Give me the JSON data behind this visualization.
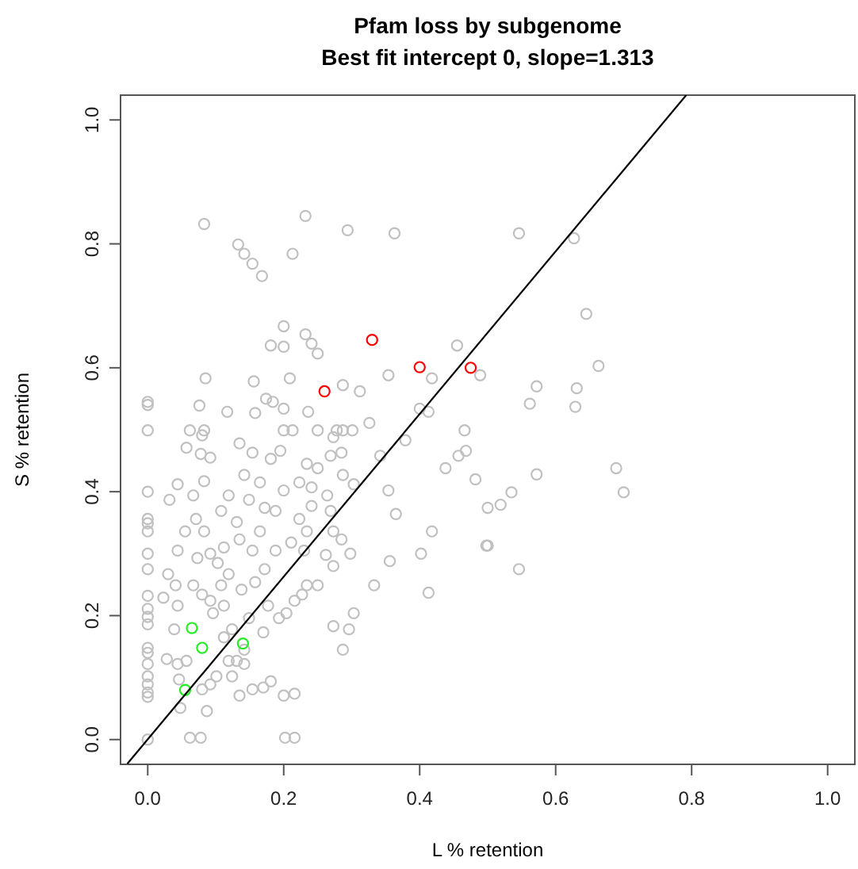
{
  "chart_data": {
    "type": "scatter",
    "title": "Pfam loss by subgenome",
    "subtitle": "Best fit intercept 0, slope=1.313",
    "xlabel": "L % retention",
    "ylabel": "S % retention",
    "xlim": [
      -0.04,
      1.04
    ],
    "ylim": [
      -0.04,
      1.04
    ],
    "xticks": [
      {
        "value": 0,
        "label": "0.0"
      },
      0.2,
      0.4,
      0.6,
      0.8,
      {
        "value": 1,
        "label": "1.0"
      }
    ],
    "yticks": [
      {
        "value": 0,
        "label": "0.0"
      },
      0.2,
      0.4,
      0.6,
      0.8,
      {
        "value": 1,
        "label": "1.0"
      }
    ],
    "grid": false,
    "marker": "circle",
    "series": [
      {
        "color": "#c0c0c0",
        "x": [
          0.083,
          0.232,
          0.294,
          0.363,
          0.133,
          0.142,
          0.154,
          0.168,
          0.213,
          0.2,
          0.232,
          0.181,
          0.2,
          0.241,
          0.25,
          0.455,
          0.489,
          0.354,
          0.418,
          0.287,
          0.312,
          0.085,
          0.156,
          0.209,
          0.0,
          0.0,
          0.076,
          0.117,
          0.158,
          0.174,
          0.184,
          0.2,
          0.236,
          0.4,
          0.413,
          0.326,
          0.466,
          0.0,
          0.062,
          0.083,
          0.2,
          0.213,
          0.25,
          0.278,
          0.287,
          0.301,
          0.546,
          0.627,
          0.645,
          0.663,
          0.572,
          0.631,
          0.562,
          0.629,
          0.482,
          0.572,
          0.535,
          0.5,
          0.519,
          0.689,
          0.7,
          0.5,
          0.546,
          0.0,
          0.0,
          0.0,
          0.0,
          0.0,
          0.0,
          0.0,
          0.0,
          0.0,
          0.0,
          0.0,
          0.0,
          0.0,
          0.0,
          0.0,
          0.0,
          0.0,
          0.0,
          0.057,
          0.078,
          0.092,
          0.083,
          0.032,
          0.044,
          0.067,
          0.071,
          0.055,
          0.083,
          0.044,
          0.073,
          0.03,
          0.041,
          0.023,
          0.067,
          0.044,
          0.08,
          0.039,
          0.028,
          0.044,
          0.057,
          0.046,
          0.048,
          0.062,
          0.078,
          0.087,
          0.08,
          0.092,
          0.101,
          0.112,
          0.124,
          0.119,
          0.131,
          0.142,
          0.096,
          0.092,
          0.112,
          0.108,
          0.119,
          0.103,
          0.092,
          0.112,
          0.135,
          0.131,
          0.108,
          0.119,
          0.142,
          0.154,
          0.181,
          0.195,
          0.165,
          0.149,
          0.172,
          0.188,
          0.2,
          0.165,
          0.154,
          0.188,
          0.211,
          0.172,
          0.158,
          0.138,
          0.177,
          0.149,
          0.193,
          0.17,
          0.142,
          0.124,
          0.135,
          0.154,
          0.17,
          0.181,
          0.2,
          0.216,
          0.202,
          0.216,
          0.223,
          0.234,
          0.23,
          0.241,
          0.223,
          0.234,
          0.25,
          0.269,
          0.285,
          0.273,
          0.241,
          0.269,
          0.264,
          0.287,
          0.303,
          0.273,
          0.234,
          0.25,
          0.227,
          0.216,
          0.204,
          0.273,
          0.285,
          0.298,
          0.262,
          0.273,
          0.296,
          0.287,
          0.303,
          0.333,
          0.356,
          0.365,
          0.354,
          0.342,
          0.379,
          0.402,
          0.413,
          0.418,
          0.438,
          0.457,
          0.468,
          0.498,
          0.135,
          0.08
        ],
        "values": [
          0.832,
          0.845,
          0.822,
          0.817,
          0.799,
          0.784,
          0.768,
          0.748,
          0.784,
          0.667,
          0.654,
          0.636,
          0.634,
          0.639,
          0.623,
          0.636,
          0.588,
          0.588,
          0.583,
          0.572,
          0.562,
          0.583,
          0.578,
          0.583,
          0.545,
          0.54,
          0.539,
          0.529,
          0.527,
          0.55,
          0.545,
          0.534,
          0.529,
          0.534,
          0.529,
          0.511,
          0.499,
          0.499,
          0.499,
          0.499,
          0.499,
          0.499,
          0.499,
          0.499,
          0.499,
          0.499,
          0.817,
          0.809,
          0.687,
          0.603,
          0.57,
          0.567,
          0.542,
          0.537,
          0.42,
          0.428,
          0.399,
          0.374,
          0.379,
          0.438,
          0.399,
          0.313,
          0.275,
          0.4,
          0.356,
          0.349,
          0.336,
          0.3,
          0.275,
          0.232,
          0.211,
          0.198,
          0.186,
          0.148,
          0.14,
          0.122,
          0.102,
          0.089,
          0.076,
          0.069,
          0.0,
          0.471,
          0.461,
          0.455,
          0.417,
          0.387,
          0.412,
          0.394,
          0.356,
          0.336,
          0.336,
          0.305,
          0.293,
          0.267,
          0.249,
          0.229,
          0.249,
          0.216,
          0.234,
          0.178,
          0.13,
          0.122,
          0.127,
          0.097,
          0.051,
          0.003,
          0.003,
          0.046,
          0.081,
          0.089,
          0.102,
          0.165,
          0.178,
          0.127,
          0.127,
          0.145,
          0.204,
          0.224,
          0.216,
          0.249,
          0.267,
          0.285,
          0.3,
          0.31,
          0.323,
          0.351,
          0.369,
          0.394,
          0.427,
          0.463,
          0.453,
          0.466,
          0.415,
          0.387,
          0.374,
          0.369,
          0.402,
          0.336,
          0.305,
          0.305,
          0.318,
          0.275,
          0.254,
          0.242,
          0.216,
          0.196,
          0.196,
          0.173,
          0.122,
          0.102,
          0.071,
          0.081,
          0.084,
          0.094,
          0.071,
          0.074,
          0.003,
          0.003,
          0.356,
          0.336,
          0.305,
          0.407,
          0.415,
          0.445,
          0.438,
          0.458,
          0.463,
          0.488,
          0.377,
          0.369,
          0.394,
          0.427,
          0.412,
          0.336,
          0.249,
          0.249,
          0.234,
          0.224,
          0.204,
          0.28,
          0.323,
          0.3,
          0.298,
          0.183,
          0.178,
          0.145,
          0.204,
          0.249,
          0.288,
          0.364,
          0.402,
          0.458,
          0.483,
          0.3,
          0.237,
          0.336,
          0.438,
          0.458,
          0.466,
          0.313,
          0.478,
          0.491
        ]
      },
      {
        "color": "#ff0000",
        "x": [
          0.26,
          0.33,
          0.4,
          0.475
        ],
        "values": [
          0.562,
          0.645,
          0.601,
          0.6
        ]
      },
      {
        "color": "#22ee22",
        "x": [
          0.065,
          0.08,
          0.14,
          0.055
        ],
        "values": [
          0.18,
          0.148,
          0.155,
          0.08
        ]
      },
      {
        "type": "line",
        "marker": "none",
        "color": "#000000",
        "x": [
          -0.03,
          0.792
        ],
        "values": [
          -0.039,
          1.04
        ]
      }
    ]
  }
}
